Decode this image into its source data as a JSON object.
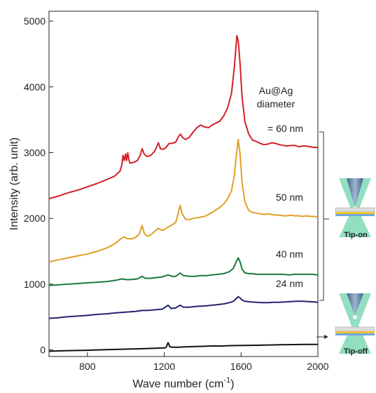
{
  "chart_data": {
    "type": "line",
    "xlabel": "Wave number (cm",
    "xlabel_sup": "-1",
    "xlabel_end": ")",
    "ylabel": "Intensity (arb. unit)",
    "xlim": [
      600,
      2000
    ],
    "ylim": [
      -100,
      5150
    ],
    "x_ticks": [
      800,
      1200,
      1600,
      2000
    ],
    "y_ticks": [
      0,
      1000,
      2000,
      3000,
      4000,
      5000
    ],
    "grid": false,
    "annotations": {
      "diameter_title_1": "Au@Ag",
      "diameter_title_2": "diameter",
      "label_60": "= 60 nm",
      "label_50": "50 nm",
      "label_40": "40 nm",
      "label_24": "24 nm"
    },
    "series": [
      {
        "label_key": "label_60",
        "color": "#d42027",
        "points": [
          [
            600,
            2300
          ],
          [
            650,
            2340
          ],
          [
            700,
            2390
          ],
          [
            750,
            2430
          ],
          [
            800,
            2480
          ],
          [
            850,
            2530
          ],
          [
            900,
            2590
          ],
          [
            940,
            2640
          ],
          [
            970,
            2720
          ],
          [
            980,
            2820
          ],
          [
            985,
            2960
          ],
          [
            992,
            2880
          ],
          [
            998,
            2980
          ],
          [
            1004,
            2880
          ],
          [
            1010,
            3000
          ],
          [
            1016,
            2890
          ],
          [
            1022,
            2840
          ],
          [
            1040,
            2850
          ],
          [
            1060,
            2880
          ],
          [
            1075,
            2960
          ],
          [
            1085,
            3060
          ],
          [
            1095,
            2980
          ],
          [
            1110,
            2940
          ],
          [
            1130,
            2960
          ],
          [
            1150,
            3020
          ],
          [
            1170,
            3150
          ],
          [
            1180,
            3060
          ],
          [
            1195,
            3050
          ],
          [
            1210,
            3080
          ],
          [
            1225,
            3140
          ],
          [
            1240,
            3140
          ],
          [
            1260,
            3160
          ],
          [
            1275,
            3250
          ],
          [
            1285,
            3280
          ],
          [
            1295,
            3230
          ],
          [
            1310,
            3200
          ],
          [
            1330,
            3230
          ],
          [
            1350,
            3310
          ],
          [
            1370,
            3380
          ],
          [
            1390,
            3420
          ],
          [
            1410,
            3390
          ],
          [
            1430,
            3380
          ],
          [
            1450,
            3420
          ],
          [
            1470,
            3450
          ],
          [
            1490,
            3480
          ],
          [
            1510,
            3560
          ],
          [
            1530,
            3680
          ],
          [
            1550,
            3900
          ],
          [
            1565,
            4300
          ],
          [
            1578,
            4780
          ],
          [
            1585,
            4700
          ],
          [
            1595,
            4350
          ],
          [
            1605,
            3850
          ],
          [
            1620,
            3470
          ],
          [
            1640,
            3280
          ],
          [
            1660,
            3190
          ],
          [
            1680,
            3170
          ],
          [
            1700,
            3140
          ],
          [
            1720,
            3120
          ],
          [
            1740,
            3130
          ],
          [
            1760,
            3150
          ],
          [
            1780,
            3140
          ],
          [
            1800,
            3120
          ],
          [
            1820,
            3110
          ],
          [
            1840,
            3100
          ],
          [
            1860,
            3110
          ],
          [
            1880,
            3110
          ],
          [
            1900,
            3090
          ],
          [
            1920,
            3100
          ],
          [
            1940,
            3100
          ],
          [
            1960,
            3090
          ],
          [
            1980,
            3080
          ],
          [
            2000,
            3080
          ]
        ]
      },
      {
        "label_key": "label_50",
        "color": "#e0a024",
        "points": [
          [
            600,
            1340
          ],
          [
            650,
            1370
          ],
          [
            700,
            1400
          ],
          [
            750,
            1430
          ],
          [
            800,
            1460
          ],
          [
            850,
            1500
          ],
          [
            900,
            1550
          ],
          [
            940,
            1610
          ],
          [
            970,
            1680
          ],
          [
            990,
            1720
          ],
          [
            1010,
            1690
          ],
          [
            1030,
            1690
          ],
          [
            1050,
            1710
          ],
          [
            1070,
            1760
          ],
          [
            1085,
            1890
          ],
          [
            1095,
            1780
          ],
          [
            1110,
            1730
          ],
          [
            1130,
            1750
          ],
          [
            1150,
            1800
          ],
          [
            1170,
            1850
          ],
          [
            1185,
            1820
          ],
          [
            1200,
            1830
          ],
          [
            1220,
            1870
          ],
          [
            1240,
            1900
          ],
          [
            1260,
            1940
          ],
          [
            1275,
            2100
          ],
          [
            1283,
            2200
          ],
          [
            1292,
            2080
          ],
          [
            1310,
            1990
          ],
          [
            1330,
            1980
          ],
          [
            1350,
            2000
          ],
          [
            1370,
            2010
          ],
          [
            1390,
            2020
          ],
          [
            1410,
            2030
          ],
          [
            1430,
            2060
          ],
          [
            1450,
            2090
          ],
          [
            1470,
            2130
          ],
          [
            1490,
            2170
          ],
          [
            1510,
            2220
          ],
          [
            1530,
            2300
          ],
          [
            1550,
            2420
          ],
          [
            1565,
            2650
          ],
          [
            1575,
            2950
          ],
          [
            1585,
            3200
          ],
          [
            1595,
            2980
          ],
          [
            1605,
            2550
          ],
          [
            1620,
            2250
          ],
          [
            1640,
            2120
          ],
          [
            1660,
            2090
          ],
          [
            1680,
            2080
          ],
          [
            1700,
            2070
          ],
          [
            1720,
            2060
          ],
          [
            1740,
            2070
          ],
          [
            1760,
            2060
          ],
          [
            1780,
            2050
          ],
          [
            1800,
            2050
          ],
          [
            1820,
            2040
          ],
          [
            1840,
            2040
          ],
          [
            1860,
            2050
          ],
          [
            1880,
            2040
          ],
          [
            1900,
            2040
          ],
          [
            1920,
            2030
          ],
          [
            1940,
            2040
          ],
          [
            1960,
            2030
          ],
          [
            1980,
            2030
          ],
          [
            2000,
            2020
          ]
        ]
      },
      {
        "label_key": "label_40",
        "color": "#1a7a3e",
        "points": [
          [
            600,
            980
          ],
          [
            650,
            990
          ],
          [
            700,
            1000
          ],
          [
            750,
            1010
          ],
          [
            800,
            1020
          ],
          [
            850,
            1030
          ],
          [
            900,
            1040
          ],
          [
            950,
            1060
          ],
          [
            980,
            1080
          ],
          [
            1000,
            1070
          ],
          [
            1030,
            1070
          ],
          [
            1060,
            1080
          ],
          [
            1085,
            1120
          ],
          [
            1100,
            1090
          ],
          [
            1130,
            1090
          ],
          [
            1160,
            1100
          ],
          [
            1190,
            1110
          ],
          [
            1220,
            1140
          ],
          [
            1240,
            1120
          ],
          [
            1260,
            1120
          ],
          [
            1283,
            1170
          ],
          [
            1300,
            1130
          ],
          [
            1330,
            1120
          ],
          [
            1360,
            1120
          ],
          [
            1390,
            1130
          ],
          [
            1420,
            1130
          ],
          [
            1450,
            1140
          ],
          [
            1480,
            1150
          ],
          [
            1510,
            1160
          ],
          [
            1540,
            1190
          ],
          [
            1560,
            1240
          ],
          [
            1575,
            1340
          ],
          [
            1585,
            1400
          ],
          [
            1595,
            1340
          ],
          [
            1605,
            1230
          ],
          [
            1620,
            1170
          ],
          [
            1640,
            1160
          ],
          [
            1660,
            1160
          ],
          [
            1680,
            1150
          ],
          [
            1700,
            1150
          ],
          [
            1730,
            1150
          ],
          [
            1760,
            1150
          ],
          [
            1790,
            1150
          ],
          [
            1820,
            1150
          ],
          [
            1850,
            1140
          ],
          [
            1880,
            1150
          ],
          [
            1910,
            1150
          ],
          [
            1940,
            1150
          ],
          [
            1970,
            1150
          ],
          [
            2000,
            1140
          ]
        ]
      },
      {
        "label_key": "label_24",
        "color": "#242470",
        "points": [
          [
            600,
            480
          ],
          [
            650,
            490
          ],
          [
            700,
            505
          ],
          [
            750,
            515
          ],
          [
            800,
            525
          ],
          [
            850,
            540
          ],
          [
            900,
            550
          ],
          [
            950,
            565
          ],
          [
            1000,
            575
          ],
          [
            1050,
            585
          ],
          [
            1085,
            600
          ],
          [
            1110,
            600
          ],
          [
            1150,
            610
          ],
          [
            1190,
            620
          ],
          [
            1220,
            680
          ],
          [
            1235,
            630
          ],
          [
            1260,
            640
          ],
          [
            1283,
            680
          ],
          [
            1300,
            650
          ],
          [
            1330,
            650
          ],
          [
            1360,
            660
          ],
          [
            1390,
            665
          ],
          [
            1420,
            670
          ],
          [
            1450,
            680
          ],
          [
            1480,
            690
          ],
          [
            1510,
            700
          ],
          [
            1540,
            720
          ],
          [
            1560,
            740
          ],
          [
            1575,
            780
          ],
          [
            1585,
            810
          ],
          [
            1595,
            790
          ],
          [
            1605,
            760
          ],
          [
            1620,
            740
          ],
          [
            1650,
            730
          ],
          [
            1680,
            725
          ],
          [
            1710,
            720
          ],
          [
            1740,
            720
          ],
          [
            1770,
            725
          ],
          [
            1800,
            725
          ],
          [
            1830,
            730
          ],
          [
            1860,
            735
          ],
          [
            1890,
            740
          ],
          [
            1920,
            740
          ],
          [
            1950,
            735
          ],
          [
            1980,
            730
          ],
          [
            2000,
            725
          ]
        ]
      },
      {
        "label_key": "",
        "color": "#111111",
        "points": [
          [
            600,
            -20
          ],
          [
            650,
            -15
          ],
          [
            700,
            -10
          ],
          [
            750,
            -8
          ],
          [
            800,
            -5
          ],
          [
            850,
            0
          ],
          [
            900,
            5
          ],
          [
            950,
            8
          ],
          [
            1000,
            12
          ],
          [
            1050,
            16
          ],
          [
            1100,
            20
          ],
          [
            1150,
            25
          ],
          [
            1200,
            30
          ],
          [
            1210,
            40
          ],
          [
            1220,
            110
          ],
          [
            1230,
            45
          ],
          [
            1260,
            40
          ],
          [
            1300,
            45
          ],
          [
            1350,
            50
          ],
          [
            1400,
            55
          ],
          [
            1450,
            60
          ],
          [
            1500,
            60
          ],
          [
            1550,
            65
          ],
          [
            1600,
            68
          ],
          [
            1650,
            70
          ],
          [
            1700,
            72
          ],
          [
            1750,
            75
          ],
          [
            1800,
            78
          ],
          [
            1850,
            80
          ],
          [
            1900,
            82
          ],
          [
            1950,
            85
          ],
          [
            2000,
            85
          ]
        ]
      }
    ]
  },
  "schematic": {
    "tip_on_label": "Tip-on",
    "tip_off_label": "Tip-off",
    "beam_color": "#7fd9b5",
    "tip_color": "#5b7fa6",
    "layer_color_1": "#f1c232",
    "layer_color_2": "#6fa8dc",
    "hotspot_color": "#e06666"
  }
}
